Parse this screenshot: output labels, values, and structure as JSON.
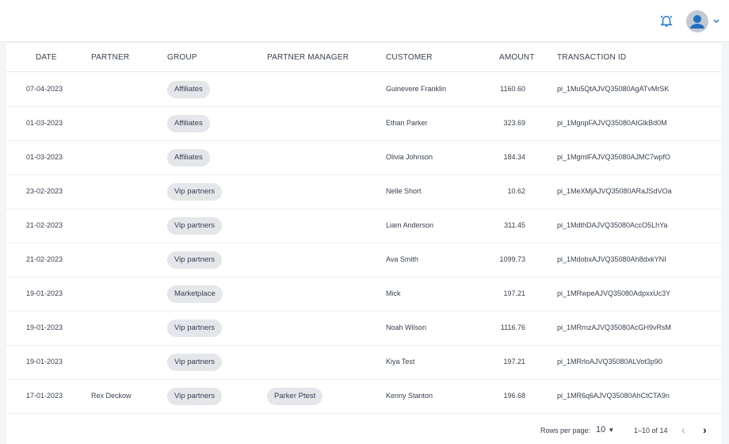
{
  "header": {
    "icons": [
      "bell-icon",
      "avatar-icon",
      "chevron-down-icon"
    ],
    "accent": "#1f7ae0"
  },
  "table": {
    "columns": [
      "DATE",
      "PARTNER",
      "GROUP",
      "PARTNER MANAGER",
      "CUSTOMER",
      "AMOUNT",
      "TRANSACTION ID"
    ],
    "rows": [
      {
        "date": "07-04-2023",
        "partner": "",
        "group": "Affiliates",
        "manager": "",
        "customer": "Guinevere Franklin",
        "amount": "1160.60",
        "txn": "pi_1Mu5QtAJVQ35080AgATvMrSK"
      },
      {
        "date": "01-03-2023",
        "partner": "",
        "group": "Affiliates",
        "manager": "",
        "customer": "Ethan Parker",
        "amount": "323.69",
        "txn": "pi_1MgnpFAJVQ35080AIGlkBd0M"
      },
      {
        "date": "01-03-2023",
        "partner": "",
        "group": "Affiliates",
        "manager": "",
        "customer": "Olivia Johnson",
        "amount": "184.34",
        "txn": "pi_1MgmlFAJVQ35080AJMC7wpfO"
      },
      {
        "date": "23-02-2023",
        "partner": "",
        "group": "Vip partners",
        "manager": "",
        "customer": "Nelle Short",
        "amount": "10.62",
        "txn": "pi_1MeXMjAJVQ35080ARaJSdVOa"
      },
      {
        "date": "21-02-2023",
        "partner": "",
        "group": "Vip partners",
        "manager": "",
        "customer": "Liam Anderson",
        "amount": "311.45",
        "txn": "pi_1MdthDAJVQ35080AccO5LhYa"
      },
      {
        "date": "21-02-2023",
        "partner": "",
        "group": "Vip partners",
        "manager": "",
        "customer": "Ava Smith",
        "amount": "1099.73",
        "txn": "pi_1MdobxAJVQ35080Ah8dxkYNI"
      },
      {
        "date": "19-01-2023",
        "partner": "",
        "group": "Marketplace",
        "manager": "",
        "customer": "Mick",
        "amount": "197.21",
        "txn": "pi_1MRwpeAJVQ35080AdpxxUc3Y"
      },
      {
        "date": "19-01-2023",
        "partner": "",
        "group": "Vip partners",
        "manager": "",
        "customer": "Noah Wilson",
        "amount": "1116.76",
        "txn": "pi_1MRrnzAJVQ35080AcGH9vRsM"
      },
      {
        "date": "19-01-2023",
        "partner": "",
        "group": "Vip partners",
        "manager": "",
        "customer": "Kiya Test",
        "amount": "197.21",
        "txn": "pi_1MRrloAJVQ35080ALVot3p90"
      },
      {
        "date": "17-01-2023",
        "partner": "Rex Deckow",
        "group": "Vip partners",
        "manager": "Parker Ptest",
        "customer": "Kenny Stanton",
        "amount": "196.68",
        "txn": "pi_1MR6q6AJVQ35080AhCtCTA9n"
      }
    ]
  },
  "pagination": {
    "rows_per_page_label": "Rows per page:",
    "rows_per_page": "10",
    "range": "1–10 of 14"
  }
}
